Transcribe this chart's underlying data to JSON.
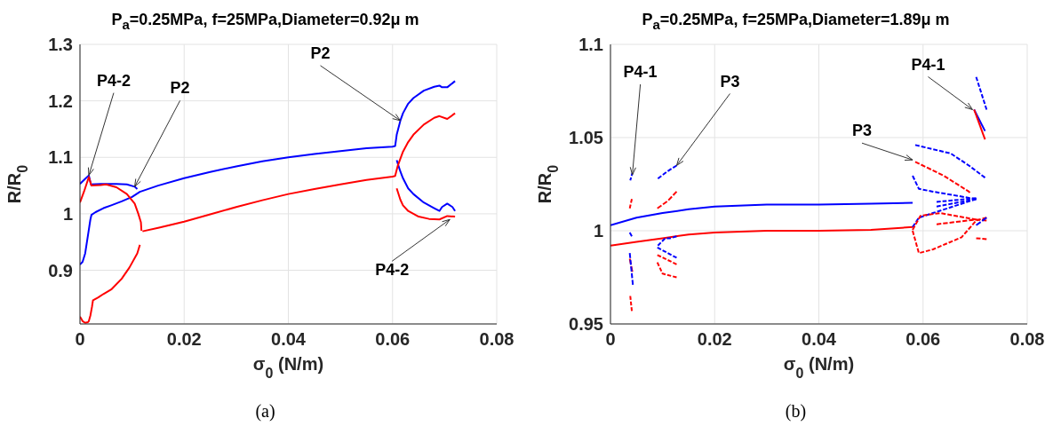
{
  "chart_data": [
    {
      "type": "line",
      "title": "P$_{a}$=0.25MPa, f=25MPa,Diameter=0.92μ m",
      "xlabel": "σ$_{0}$ (N/m)",
      "ylabel": "R/R$_{0}$",
      "xlim": [
        0,
        0.08
      ],
      "xticks": [
        0,
        0.02,
        0.04,
        0.06,
        0.08
      ],
      "ylim": [
        0.805,
        1.3
      ],
      "yticks": [
        0.9,
        1,
        1.1,
        1.2,
        1.3
      ],
      "grid": true,
      "series": [
        {
          "color": "#0000ff",
          "x": [
            0,
            0.001,
            0.0017,
            0.0021,
            0.004,
            0.007,
            0.009,
            0.0105,
            0.011
          ],
          "values": [
            1.053,
            1.062,
            1.068,
            1.052,
            1.053,
            1.053,
            1.052,
            1.048,
            1.044
          ]
        },
        {
          "color": "#0000ff",
          "x": [
            0,
            0.0005,
            0.001,
            0.0015,
            0.002,
            0.0022,
            0.003,
            0.0045,
            0.006,
            0.008,
            0.01,
            0.0115,
            0.015,
            0.02,
            0.025,
            0.03,
            0.035,
            0.04,
            0.045,
            0.05,
            0.055,
            0.06,
            0.0605,
            0.0608,
            0.0615,
            0.062,
            0.063,
            0.064,
            0.066,
            0.068,
            0.069,
            0.0695,
            0.0705,
            0.072
          ],
          "values": [
            0.91,
            0.915,
            0.93,
            0.96,
            0.99,
            0.998,
            1.003,
            1.01,
            1.015,
            1.022,
            1.03,
            1.039,
            1.05,
            1.063,
            1.074,
            1.084,
            1.093,
            1.1,
            1.106,
            1.111,
            1.116,
            1.119,
            1.12,
            1.14,
            1.165,
            1.178,
            1.195,
            1.205,
            1.218,
            1.225,
            1.227,
            1.224,
            1.224,
            1.235
          ]
        },
        {
          "color": "#0000ff",
          "x": [
            0.0608,
            0.0615,
            0.062,
            0.063,
            0.064,
            0.066,
            0.068,
            0.069,
            0.0695,
            0.0705,
            0.0715,
            0.072
          ],
          "values": [
            1.095,
            1.075,
            1.063,
            1.045,
            1.035,
            1.02,
            1.01,
            1.005,
            1.012,
            1.018,
            1.012,
            1.005
          ]
        },
        {
          "color": "#ff0000",
          "x": [
            0,
            0.0008,
            0.0017,
            0.0022,
            0.004,
            0.005,
            0.007,
            0.009,
            0.0105,
            0.0112,
            0.0117,
            0.0118
          ],
          "values": [
            1.02,
            1.04,
            1.065,
            1.05,
            1.051,
            1.052,
            1.047,
            1.035,
            1.018,
            1,
            0.985,
            0.97
          ]
        },
        {
          "color": "#ff0000",
          "x": [
            0,
            0.0005,
            0.001,
            0.0015,
            0.0017,
            0.002,
            0.0023,
            0.0025,
            0.0035,
            0.0045,
            0.006,
            0.008,
            0.0095,
            0.011,
            0.0115
          ],
          "values": [
            0.818,
            0.81,
            0.807,
            0.808,
            0.81,
            0.82,
            0.835,
            0.847,
            0.852,
            0.858,
            0.866,
            0.885,
            0.905,
            0.93,
            0.945
          ]
        },
        {
          "color": "#ff0000",
          "x": [
            0.012,
            0.015,
            0.02,
            0.025,
            0.03,
            0.035,
            0.04,
            0.045,
            0.05,
            0.055,
            0.06,
            0.0605,
            0.061,
            0.062,
            0.063,
            0.064,
            0.066,
            0.068,
            0.069,
            0.0705,
            0.072
          ],
          "values": [
            0.969,
            0.975,
            0.986,
            0.999,
            1.012,
            1.024,
            1.035,
            1.044,
            1.052,
            1.06,
            1.066,
            1.067,
            1.085,
            1.11,
            1.127,
            1.14,
            1.158,
            1.17,
            1.173,
            1.168,
            1.178
          ]
        },
        {
          "color": "#ff0000",
          "x": [
            0.0608,
            0.0615,
            0.062,
            0.063,
            0.065,
            0.067,
            0.069,
            0.0705,
            0.072
          ],
          "values": [
            1.045,
            1.025,
            1.015,
            1.005,
            0.995,
            0.991,
            0.99,
            0.996,
            0.995
          ]
        }
      ],
      "annotations": [
        {
          "text": "P4-2",
          "x": 0.0017,
          "y": 1.068
        },
        {
          "text": "P2",
          "x": 0.0105,
          "y": 1.048
        },
        {
          "text": "P2",
          "x": 0.0615,
          "y": 1.165
        },
        {
          "text": "P4-2",
          "x": 0.071,
          "y": 0.99
        },
        "(a)"
      ]
    },
    {
      "type": "line",
      "title": "P$_{a}$=0.25MPa, f=25MPa,Diameter=1.89μ m",
      "xlabel": "σ$_{0}$ (N/m)",
      "ylabel": "R/R$_{0}$",
      "xlim": [
        0,
        0.08
      ],
      "xticks": [
        0,
        0.02,
        0.04,
        0.06,
        0.08
      ],
      "ylim": [
        0.95,
        1.1
      ],
      "yticks": [
        0.95,
        1,
        1.05,
        1.1
      ],
      "grid": true,
      "series": [
        {
          "color": "#0000ff",
          "x": [
            0,
            0.005,
            0.01,
            0.015,
            0.02,
            0.03,
            0.04,
            0.05,
            0.058
          ],
          "values": [
            1.003,
            1.007,
            1.0095,
            1.0115,
            1.013,
            1.014,
            1.014,
            1.0145,
            1.015
          ]
        },
        {
          "color": "#ff0000",
          "x": [
            0,
            0.005,
            0.01,
            0.015,
            0.02,
            0.03,
            0.04,
            0.05,
            0.058
          ],
          "values": [
            0.992,
            0.994,
            0.996,
            0.998,
            0.999,
            1,
            1,
            1.0005,
            1.002
          ]
        },
        {
          "color": "#0000ff",
          "line_style": "dashed",
          "x": [
            0.0038,
            0.0042
          ],
          "values": [
            1.027,
            1.031
          ]
        },
        {
          "color": "#ff0000",
          "line_style": "dashed",
          "x": [
            0.0037,
            0.0041
          ],
          "values": [
            1.012,
            1.017
          ]
        },
        {
          "color": "#0000ff",
          "line_style": "dashed",
          "x": [
            0.0037,
            0.0041
          ],
          "values": [
            0.999,
            0.997
          ]
        },
        {
          "color": "#ff0000",
          "line_style": "dashed",
          "x": [
            0.0037,
            0.0042
          ],
          "values": [
            0.985,
            0.978
          ]
        },
        {
          "color": "#0000ff",
          "line_style": "dashed",
          "x": [
            0.0037,
            0.0043
          ],
          "values": [
            0.988,
            0.971
          ]
        },
        {
          "color": "#ff0000",
          "line_style": "dashed",
          "x": [
            0.0038,
            0.0041
          ],
          "values": [
            0.965,
            0.957
          ]
        },
        {
          "color": "#0000ff",
          "line_style": "dashed",
          "x": [
            0.0091,
            0.011,
            0.0127
          ],
          "values": [
            1.028,
            1.032,
            1.035
          ]
        },
        {
          "color": "#ff0000",
          "line_style": "dashed",
          "x": [
            0.009,
            0.011,
            0.0127
          ],
          "values": [
            1.012,
            1.016,
            1.021
          ]
        },
        {
          "color": "#0000ff",
          "line_style": "dashed",
          "x": [
            0.0091,
            0.0105,
            0.0115,
            0.0127
          ],
          "values": [
            0.992,
            0.996,
            0.996,
            0.997
          ]
        },
        {
          "color": "#0000ff",
          "line_style": "dashed",
          "x": [
            0.009,
            0.0127
          ],
          "values": [
            0.991,
            0.9855
          ]
        },
        {
          "color": "#ff0000",
          "line_style": "dashed",
          "x": [
            0.009,
            0.0127
          ],
          "values": [
            0.987,
            0.982
          ]
        },
        {
          "color": "#ff0000",
          "line_style": "dashed",
          "x": [
            0.009,
            0.01,
            0.0127
          ],
          "values": [
            0.983,
            0.977,
            0.975
          ]
        },
        {
          "color": "#0000ff",
          "line_style": "dashed",
          "x": [
            0.0585,
            0.0653,
            0.0688,
            0.0719
          ],
          "values": [
            1.046,
            1.0415,
            1.035,
            1.0285
          ]
        },
        {
          "color": "#ff0000",
          "line_style": "dashed",
          "x": [
            0.0585,
            0.064,
            0.0688,
            0.069
          ],
          "values": [
            1.037,
            1.0295,
            1.021,
            1.0205
          ]
        },
        {
          "color": "#0000ff",
          "line_style": "dashed",
          "x": [
            0.058,
            0.0592,
            0.0619,
            0.0702
          ],
          "values": [
            1.0295,
            1.0225,
            1.021,
            1.017
          ]
        },
        {
          "color": "#0000ff",
          "line_style": "dashed",
          "x": [
            0.0626,
            0.0702
          ],
          "values": [
            1.0155,
            1.0175
          ]
        },
        {
          "color": "#0000ff",
          "line_style": "dashed",
          "x": [
            0.0626,
            0.0702
          ],
          "values": [
            1.013,
            1.017
          ]
        },
        {
          "color": "#0000ff",
          "line_style": "dashed",
          "x": [
            0.058,
            0.0592,
            0.0619,
            0.0702
          ],
          "values": [
            1.002,
            1.007,
            1.0095,
            1.017
          ]
        },
        {
          "color": "#ff0000",
          "line_style": "dashed",
          "x": [
            0.058,
            0.0595,
            0.0633,
            0.0702
          ],
          "values": [
            1.0005,
            1.008,
            1.0095,
            1.006
          ]
        },
        {
          "color": "#ff0000",
          "line_style": "dashed",
          "x": [
            0.0626,
            0.0702,
            0.0722
          ],
          "values": [
            1.0035,
            1.006,
            1.0055
          ]
        },
        {
          "color": "#ff0000",
          "line_style": "dashed",
          "x": [
            0.058,
            0.0592,
            0.0619,
            0.0674,
            0.0702,
            0.0722
          ],
          "values": [
            1,
            0.988,
            0.99,
            0.9965,
            1.0055,
            1.007
          ]
        },
        {
          "color": "#0000ff",
          "line_style": "dashed",
          "x": [
            0.0702,
            0.0722
          ],
          "values": [
            1.003,
            1.007
          ]
        },
        {
          "color": "#ff0000",
          "line_style": "dashed",
          "x": [
            0.0702,
            0.0722
          ],
          "values": [
            0.996,
            0.9955
          ]
        },
        {
          "color": "#0000ff",
          "line_style": "dashed",
          "x": [
            0.0702,
            0.0722
          ],
          "values": [
            1.0825,
            1.065
          ]
        },
        {
          "color": "#0000ff",
          "x": [
            0.0698,
            0.0719
          ],
          "values": [
            1.065,
            1.0535
          ]
        },
        {
          "color": "#ff0000",
          "x": [
            0.0698,
            0.0719
          ],
          "values": [
            1.065,
            1.049
          ]
        }
      ],
      "annotations": [
        {
          "text": "P4-1",
          "x": 0.0042,
          "y": 1.03
        },
        {
          "text": "P3",
          "x": 0.0127,
          "y": 1.035
        },
        {
          "text": "P3",
          "x": 0.058,
          "y": 1.038
        },
        {
          "text": "P4-1",
          "x": 0.0695,
          "y": 1.065
        },
        "(b)"
      ]
    }
  ]
}
